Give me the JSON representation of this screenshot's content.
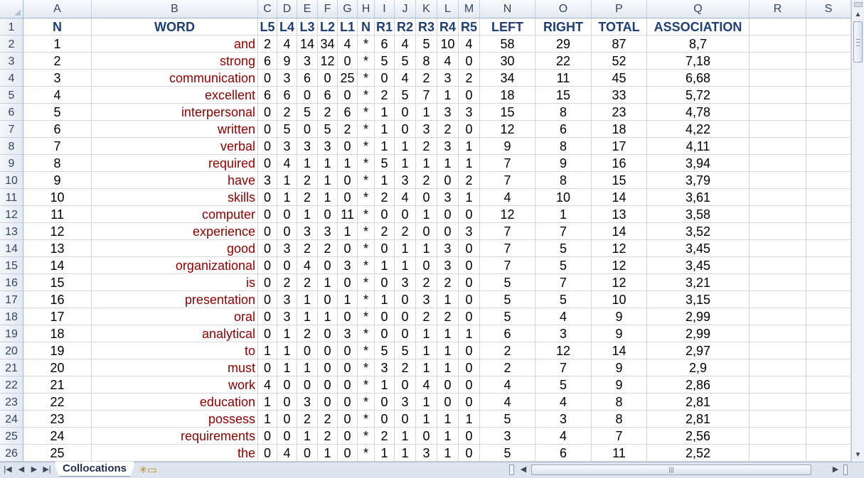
{
  "columns": [
    "A",
    "B",
    "C",
    "D",
    "E",
    "F",
    "G",
    "H",
    "I",
    "J",
    "K",
    "L",
    "M",
    "N",
    "O",
    "P",
    "Q",
    "R",
    "S"
  ],
  "header_row": [
    "N",
    "WORD",
    "L5",
    "L4",
    "L3",
    "L2",
    "L1",
    "N",
    "R1",
    "R2",
    "R3",
    "R4",
    "R5",
    "LEFT",
    "RIGHT",
    "TOTAL",
    "ASSOCIATION",
    "",
    ""
  ],
  "rows": [
    [
      "1",
      "and",
      "2",
      "4",
      "14",
      "34",
      "4",
      "*",
      "6",
      "4",
      "5",
      "10",
      "4",
      "58",
      "29",
      "87",
      "8,7"
    ],
    [
      "2",
      "strong",
      "6",
      "9",
      "3",
      "12",
      "0",
      "*",
      "5",
      "5",
      "8",
      "4",
      "0",
      "30",
      "22",
      "52",
      "7,18"
    ],
    [
      "3",
      "communication",
      "0",
      "3",
      "6",
      "0",
      "25",
      "*",
      "0",
      "4",
      "2",
      "3",
      "2",
      "34",
      "11",
      "45",
      "6,68"
    ],
    [
      "4",
      "excellent",
      "6",
      "6",
      "0",
      "6",
      "0",
      "*",
      "2",
      "5",
      "7",
      "1",
      "0",
      "18",
      "15",
      "33",
      "5,72"
    ],
    [
      "5",
      "interpersonal",
      "0",
      "2",
      "5",
      "2",
      "6",
      "*",
      "1",
      "0",
      "1",
      "3",
      "3",
      "15",
      "8",
      "23",
      "4,78"
    ],
    [
      "6",
      "written",
      "0",
      "5",
      "0",
      "5",
      "2",
      "*",
      "1",
      "0",
      "3",
      "2",
      "0",
      "12",
      "6",
      "18",
      "4,22"
    ],
    [
      "7",
      "verbal",
      "0",
      "3",
      "3",
      "3",
      "0",
      "*",
      "1",
      "1",
      "2",
      "3",
      "1",
      "9",
      "8",
      "17",
      "4,11"
    ],
    [
      "8",
      "required",
      "0",
      "4",
      "1",
      "1",
      "1",
      "*",
      "5",
      "1",
      "1",
      "1",
      "1",
      "7",
      "9",
      "16",
      "3,94"
    ],
    [
      "9",
      "have",
      "3",
      "1",
      "2",
      "1",
      "0",
      "*",
      "1",
      "3",
      "2",
      "0",
      "2",
      "7",
      "8",
      "15",
      "3,79"
    ],
    [
      "10",
      "skills",
      "0",
      "1",
      "2",
      "1",
      "0",
      "*",
      "2",
      "4",
      "0",
      "3",
      "1",
      "4",
      "10",
      "14",
      "3,61"
    ],
    [
      "11",
      "computer",
      "0",
      "0",
      "1",
      "0",
      "11",
      "*",
      "0",
      "0",
      "1",
      "0",
      "0",
      "12",
      "1",
      "13",
      "3,58"
    ],
    [
      "12",
      "experience",
      "0",
      "0",
      "3",
      "3",
      "1",
      "*",
      "2",
      "2",
      "0",
      "0",
      "3",
      "7",
      "7",
      "14",
      "3,52"
    ],
    [
      "13",
      "good",
      "0",
      "3",
      "2",
      "2",
      "0",
      "*",
      "0",
      "1",
      "1",
      "3",
      "0",
      "7",
      "5",
      "12",
      "3,45"
    ],
    [
      "14",
      "organizational",
      "0",
      "0",
      "4",
      "0",
      "3",
      "*",
      "1",
      "1",
      "0",
      "3",
      "0",
      "7",
      "5",
      "12",
      "3,45"
    ],
    [
      "15",
      "is",
      "0",
      "2",
      "2",
      "1",
      "0",
      "*",
      "0",
      "3",
      "2",
      "2",
      "0",
      "5",
      "7",
      "12",
      "3,21"
    ],
    [
      "16",
      "presentation",
      "0",
      "3",
      "1",
      "0",
      "1",
      "*",
      "1",
      "0",
      "3",
      "1",
      "0",
      "5",
      "5",
      "10",
      "3,15"
    ],
    [
      "17",
      "oral",
      "0",
      "3",
      "1",
      "1",
      "0",
      "*",
      "0",
      "0",
      "2",
      "2",
      "0",
      "5",
      "4",
      "9",
      "2,99"
    ],
    [
      "18",
      "analytical",
      "0",
      "1",
      "2",
      "0",
      "3",
      "*",
      "0",
      "0",
      "1",
      "1",
      "1",
      "6",
      "3",
      "9",
      "2,99"
    ],
    [
      "19",
      "to",
      "1",
      "1",
      "0",
      "0",
      "0",
      "*",
      "5",
      "5",
      "1",
      "1",
      "0",
      "2",
      "12",
      "14",
      "2,97"
    ],
    [
      "20",
      "must",
      "0",
      "1",
      "1",
      "0",
      "0",
      "*",
      "3",
      "2",
      "1",
      "1",
      "0",
      "2",
      "7",
      "9",
      "2,9"
    ],
    [
      "21",
      "work",
      "4",
      "0",
      "0",
      "0",
      "0",
      "*",
      "1",
      "0",
      "4",
      "0",
      "0",
      "4",
      "5",
      "9",
      "2,86"
    ],
    [
      "22",
      "education",
      "1",
      "0",
      "3",
      "0",
      "0",
      "*",
      "0",
      "3",
      "1",
      "0",
      "0",
      "4",
      "4",
      "8",
      "2,81"
    ],
    [
      "23",
      "possess",
      "1",
      "0",
      "2",
      "2",
      "0",
      "*",
      "0",
      "0",
      "1",
      "1",
      "1",
      "5",
      "3",
      "8",
      "2,81"
    ],
    [
      "24",
      "requirements",
      "0",
      "0",
      "1",
      "2",
      "0",
      "*",
      "2",
      "1",
      "0",
      "1",
      "0",
      "3",
      "4",
      "7",
      "2,56"
    ],
    [
      "25",
      "the",
      "0",
      "4",
      "0",
      "1",
      "0",
      "*",
      "1",
      "1",
      "3",
      "1",
      "0",
      "5",
      "6",
      "11",
      "2,52"
    ]
  ],
  "sheet_tab": "Collocations",
  "icons": {
    "new_sheet": "insert-worksheet-icon",
    "nav_first": "first-sheet-icon",
    "nav_prev": "prev-sheet-icon",
    "nav_next": "next-sheet-icon",
    "nav_last": "last-sheet-icon"
  }
}
